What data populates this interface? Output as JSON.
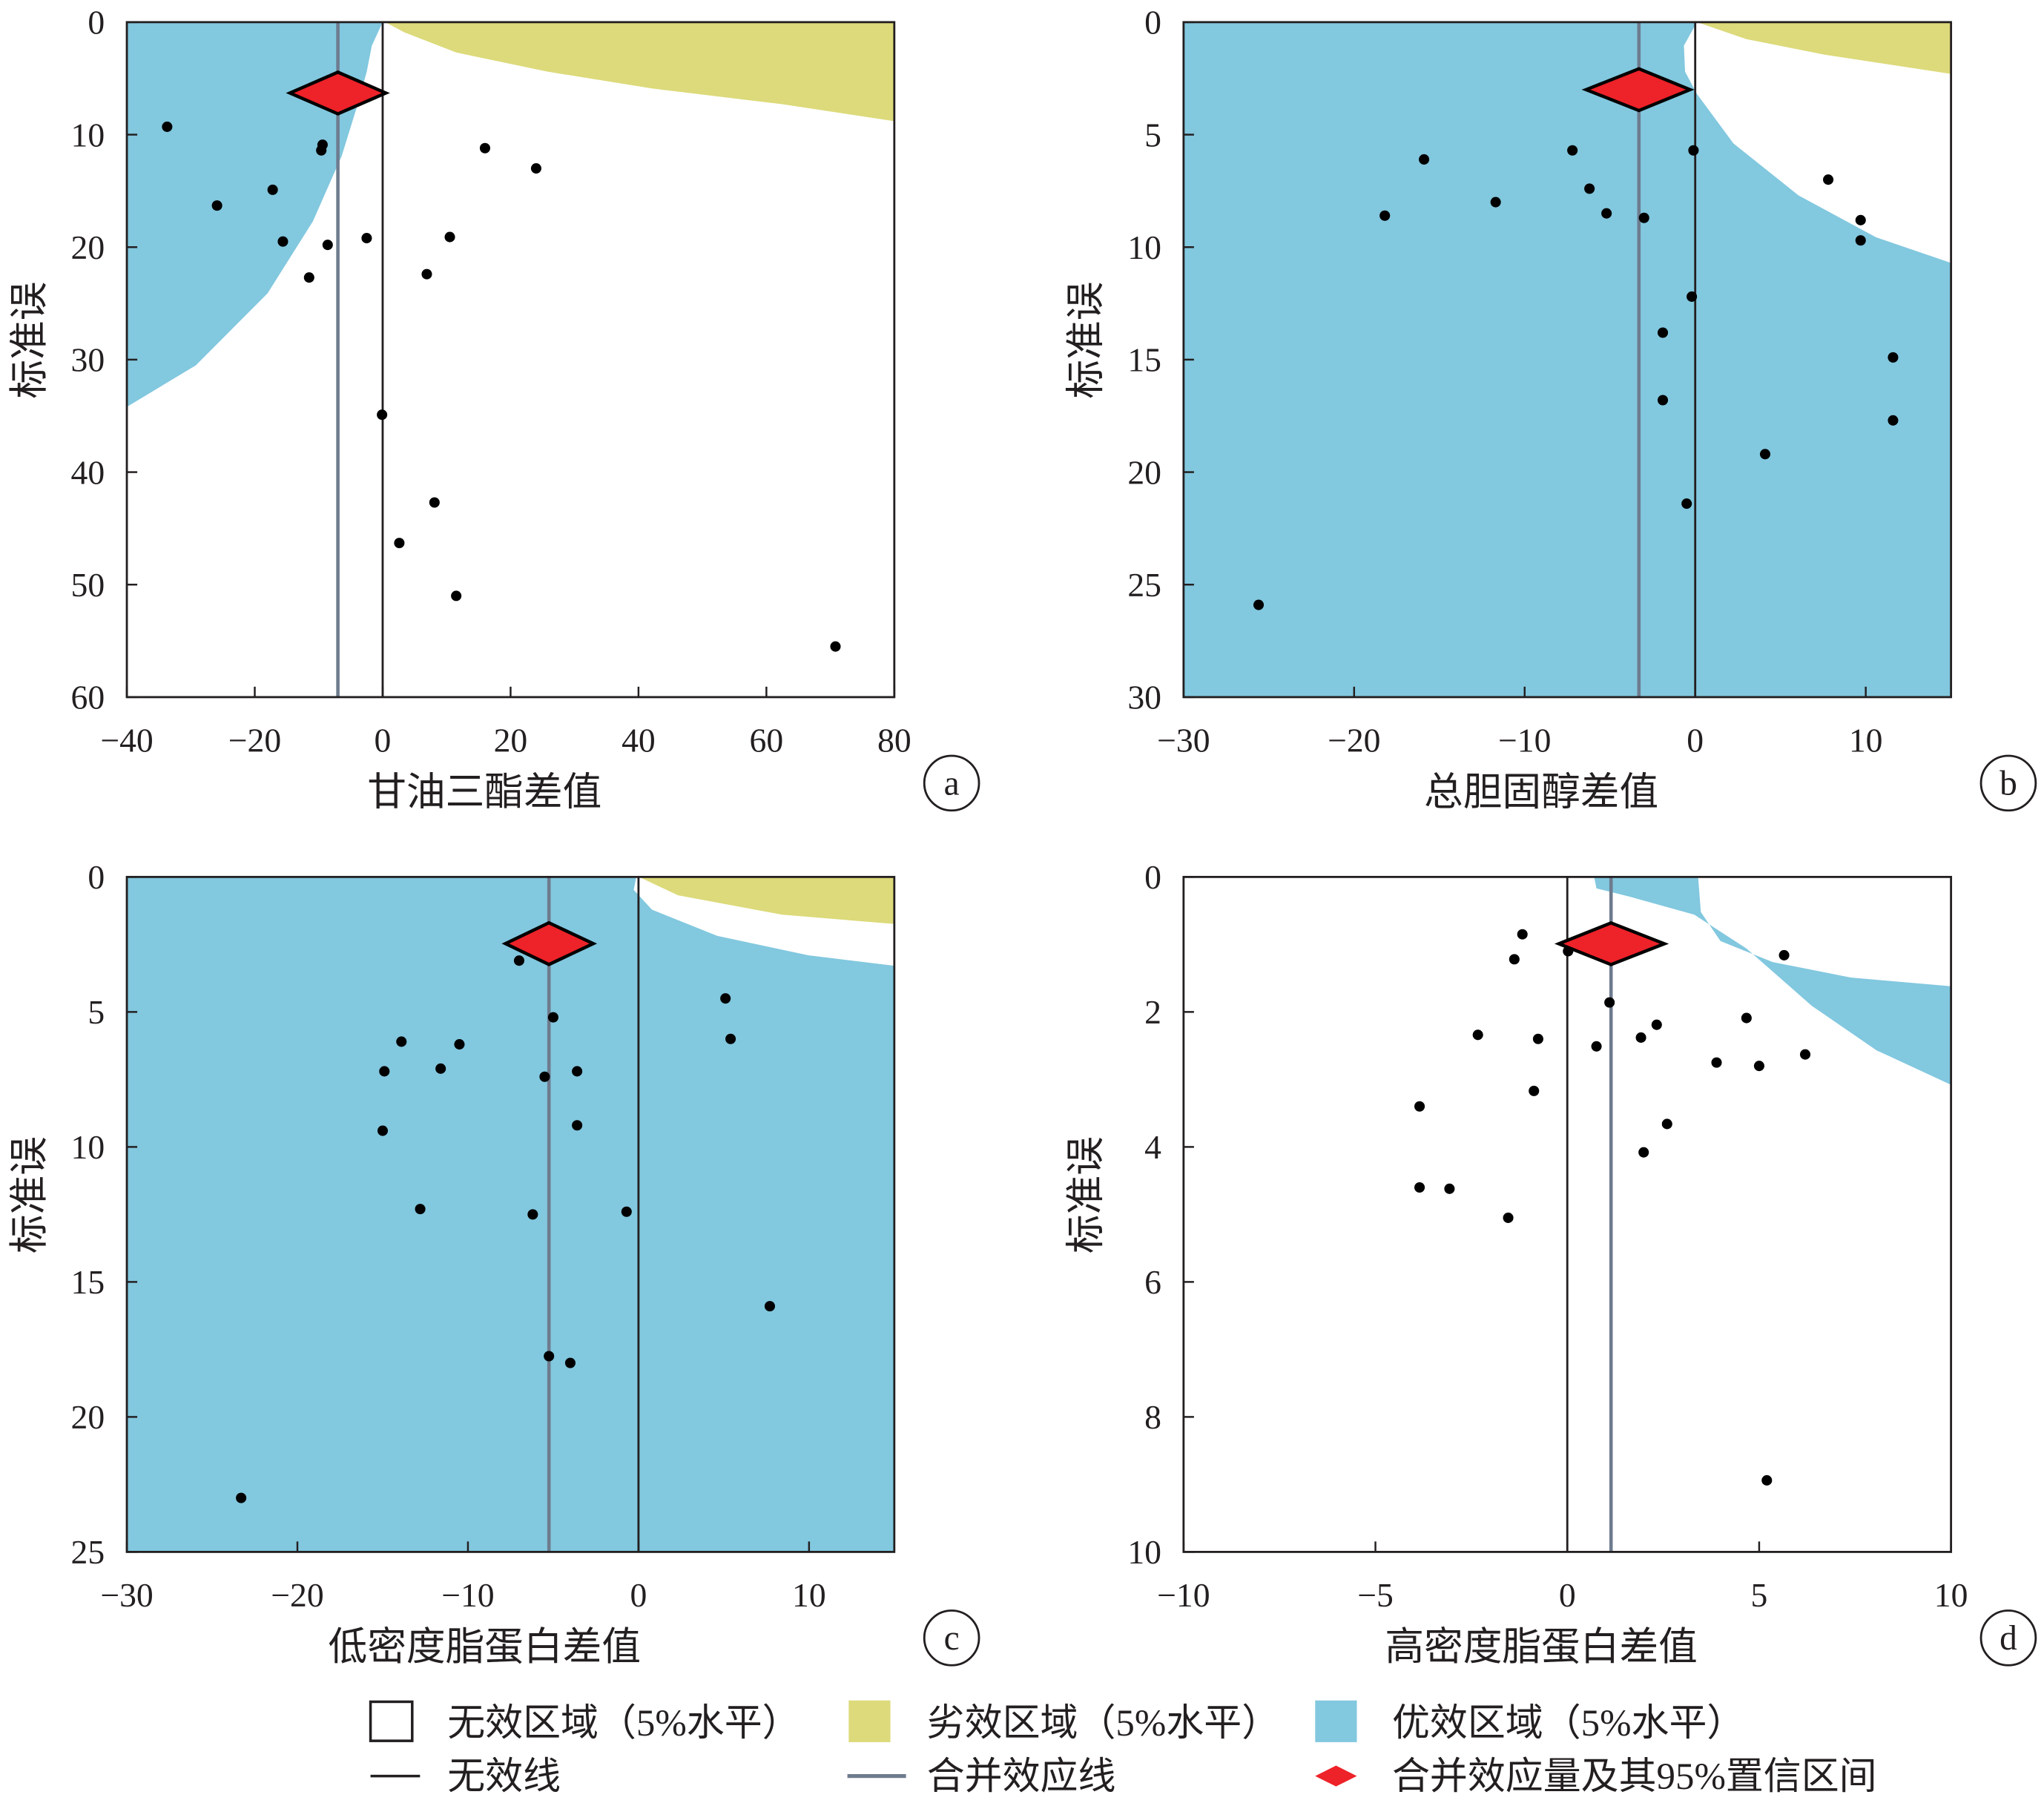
{
  "colors": {
    "superior": "#82C8DF",
    "inferior": "#DCDA7A",
    "pooled": "#EE2229",
    "pooled_line": "#6E7B8E",
    "null_line": "#231F20",
    "point": "#000000"
  },
  "legend": {
    "null_region": "无效区域（5%水平）",
    "inferior_region": "劣效区域（5%水平）",
    "superior_region": "优效区域（5%水平）",
    "null_line": "无效线",
    "pooled_line": "合并效应线",
    "pooled_estimate": "合并效应量及其95%置信区间"
  },
  "chart_data": [
    {
      "type": "scatter",
      "panel": "a",
      "xlabel": "甘油三酯差值",
      "ylabel": "标准误",
      "xlim": [
        -40,
        80
      ],
      "ylim": [
        0,
        60
      ],
      "y_inverted": true,
      "xticks": [
        -40,
        -20,
        0,
        20,
        40,
        60,
        80
      ],
      "yticks": [
        0,
        10,
        20,
        30,
        40,
        50,
        60
      ],
      "pooled": {
        "estimate": -7.0,
        "ci": [
          -14.5,
          0.5
        ],
        "se_position": 6.3
      },
      "superior_region": [
        [
          0,
          0
        ],
        [
          -1.7,
          2.1
        ],
        [
          -2.5,
          4.4
        ],
        [
          -3.9,
          7.3
        ],
        [
          -6.4,
          11.9
        ],
        [
          -10.9,
          17.7
        ],
        [
          -18,
          24.1
        ],
        [
          -29.2,
          30.5
        ],
        [
          -40,
          34.2
        ]
      ],
      "inferior_region": [
        [
          0.4,
          0
        ],
        [
          3.4,
          0.9
        ],
        [
          11.5,
          2.7
        ],
        [
          25.8,
          4.4
        ],
        [
          42.1,
          5.9
        ],
        [
          62.5,
          7.3
        ],
        [
          80,
          8.8
        ]
      ],
      "points": [
        [
          -33.7,
          9.3
        ],
        [
          -25.9,
          16.3
        ],
        [
          -17.2,
          14.9
        ],
        [
          -15.6,
          19.5
        ],
        [
          -9.6,
          11.4
        ],
        [
          -9.4,
          10.9
        ],
        [
          -11.5,
          22.7
        ],
        [
          -8.6,
          19.8
        ],
        [
          -2.5,
          19.2
        ],
        [
          -0.1,
          34.9
        ],
        [
          2.6,
          46.3
        ],
        [
          6.9,
          22.4
        ],
        [
          8.1,
          42.7
        ],
        [
          10.5,
          19.1
        ],
        [
          11.5,
          51.0
        ],
        [
          16,
          11.2
        ],
        [
          24,
          13.0
        ],
        [
          70.8,
          55.5
        ]
      ]
    },
    {
      "type": "scatter",
      "panel": "b",
      "xlabel": "总胆固醇差值",
      "ylabel": "标准误",
      "xlim": [
        -30,
        15
      ],
      "ylim": [
        0,
        30
      ],
      "y_inverted": true,
      "xticks": [
        -30,
        -20,
        -10,
        0,
        10
      ],
      "yticks": [
        0,
        5,
        10,
        15,
        20,
        25,
        30
      ],
      "pooled": {
        "estimate": -3.3,
        "ci": [
          -6.4,
          -0.3
        ],
        "se_position": 3.0
      },
      "background": "superior",
      "null_region": [
        [
          0.1,
          0
        ],
        [
          -0.66,
          1.04
        ],
        [
          -0.59,
          2.2
        ],
        [
          0.1,
          3.19
        ],
        [
          2.24,
          5.39
        ],
        [
          6.06,
          7.7
        ],
        [
          10.6,
          9.56
        ],
        [
          15,
          10.7
        ]
      ],
      "inferior_region": [
        [
          0.1,
          0
        ],
        [
          3.0,
          0.75
        ],
        [
          7.6,
          1.45
        ],
        [
          15,
          2.3
        ]
      ],
      "points": [
        [
          -18.2,
          8.6
        ],
        [
          -15.9,
          6.1
        ],
        [
          -11.7,
          8.0
        ],
        [
          -7.2,
          5.7
        ],
        [
          -6.2,
          7.4
        ],
        [
          -5.2,
          8.5
        ],
        [
          -3.8,
          3.6
        ],
        [
          -3.0,
          8.7
        ],
        [
          -2.3,
          3.1
        ],
        [
          -0.1,
          5.7
        ],
        [
          -0.2,
          12.2
        ],
        [
          -1.9,
          13.8
        ],
        [
          -1.9,
          16.8
        ],
        [
          -0.5,
          21.4
        ],
        [
          4.1,
          19.2
        ],
        [
          7.8,
          7.0
        ],
        [
          9.7,
          8.8
        ],
        [
          9.7,
          9.7
        ],
        [
          11.6,
          14.9
        ],
        [
          11.6,
          17.7
        ],
        [
          -25.6,
          25.9
        ]
      ]
    },
    {
      "type": "scatter",
      "panel": "c",
      "xlabel": "低密度脂蛋白差值",
      "ylabel": "标准误",
      "xlim": [
        -30,
        15
      ],
      "ylim": [
        0,
        25
      ],
      "y_inverted": true,
      "xticks": [
        -30,
        -20,
        -10,
        0,
        10
      ],
      "yticks": [
        0,
        5,
        10,
        15,
        20,
        25
      ],
      "pooled": {
        "estimate": -5.25,
        "ci": [
          -7.8,
          -2.65
        ],
        "se_position": 2.47
      },
      "background": "superior",
      "null_region": [
        [
          -0.13,
          0
        ],
        [
          -0.28,
          0.48
        ],
        [
          0.79,
          1.21
        ],
        [
          4.61,
          2.18
        ],
        [
          9.96,
          2.9
        ],
        [
          15,
          3.29
        ]
      ],
      "inferior_region": [
        [
          0.03,
          0
        ],
        [
          2.32,
          0.68
        ],
        [
          8.43,
          1.4
        ],
        [
          15,
          1.74
        ]
      ],
      "points": [
        [
          -23.3,
          23.0
        ],
        [
          -15.0,
          9.4
        ],
        [
          -14.9,
          7.2
        ],
        [
          -13.9,
          6.1
        ],
        [
          -12.8,
          12.3
        ],
        [
          -11.6,
          7.1
        ],
        [
          -10.5,
          6.2
        ],
        [
          -7.0,
          3.1
        ],
        [
          -6.2,
          12.5
        ],
        [
          -5.5,
          7.4
        ],
        [
          -5.25,
          17.75
        ],
        [
          -5.0,
          2.5
        ],
        [
          -5.0,
          5.2
        ],
        [
          -4.0,
          18.0
        ],
        [
          -3.6,
          7.2
        ],
        [
          -3.6,
          9.2
        ],
        [
          -0.7,
          12.4
        ],
        [
          5.1,
          4.5
        ],
        [
          5.4,
          6.0
        ],
        [
          7.7,
          15.9
        ]
      ]
    },
    {
      "type": "scatter",
      "panel": "d",
      "xlabel": "高密度脂蛋白差值",
      "ylabel": "标准误",
      "xlim": [
        -10,
        10
      ],
      "ylim": [
        0,
        10
      ],
      "y_inverted": true,
      "xticks": [
        -10,
        -5,
        0,
        5,
        10
      ],
      "yticks": [
        0,
        2,
        4,
        6,
        8,
        10
      ],
      "pooled": {
        "estimate": 1.14,
        "ci": [
          -0.22,
          2.53
        ],
        "se_position": 0.99
      },
      "superior_band": [
        [
          0.7,
          0
        ],
        [
          3.41,
          0
        ],
        [
          3.48,
          0.52
        ],
        [
          3.99,
          0.95
        ],
        [
          5.35,
          1.26
        ],
        [
          7.39,
          1.49
        ],
        [
          10,
          1.62
        ],
        [
          10,
          3.08
        ],
        [
          8.06,
          2.57
        ],
        [
          6.37,
          1.91
        ],
        [
          4.67,
          1.06
        ],
        [
          3.31,
          0.56
        ],
        [
          1.61,
          0.29
        ],
        [
          0.76,
          0.17
        ]
      ],
      "points": [
        [
          -3.85,
          3.4
        ],
        [
          -3.85,
          4.6
        ],
        [
          -3.07,
          4.62
        ],
        [
          -2.33,
          2.34
        ],
        [
          -1.54,
          5.05
        ],
        [
          -1.38,
          1.22
        ],
        [
          -1.17,
          0.85
        ],
        [
          -0.87,
          3.17
        ],
        [
          -0.76,
          2.4
        ],
        [
          0.02,
          1.1
        ],
        [
          0.76,
          2.51
        ],
        [
          1.1,
          1.86
        ],
        [
          1.92,
          2.38
        ],
        [
          1.99,
          4.08
        ],
        [
          2.33,
          2.19
        ],
        [
          2.6,
          3.66
        ],
        [
          3.89,
          2.75
        ],
        [
          4.67,
          2.09
        ],
        [
          5.0,
          2.8
        ],
        [
          5.2,
          8.94
        ],
        [
          5.65,
          1.16
        ],
        [
          6.2,
          2.63
        ]
      ]
    }
  ]
}
